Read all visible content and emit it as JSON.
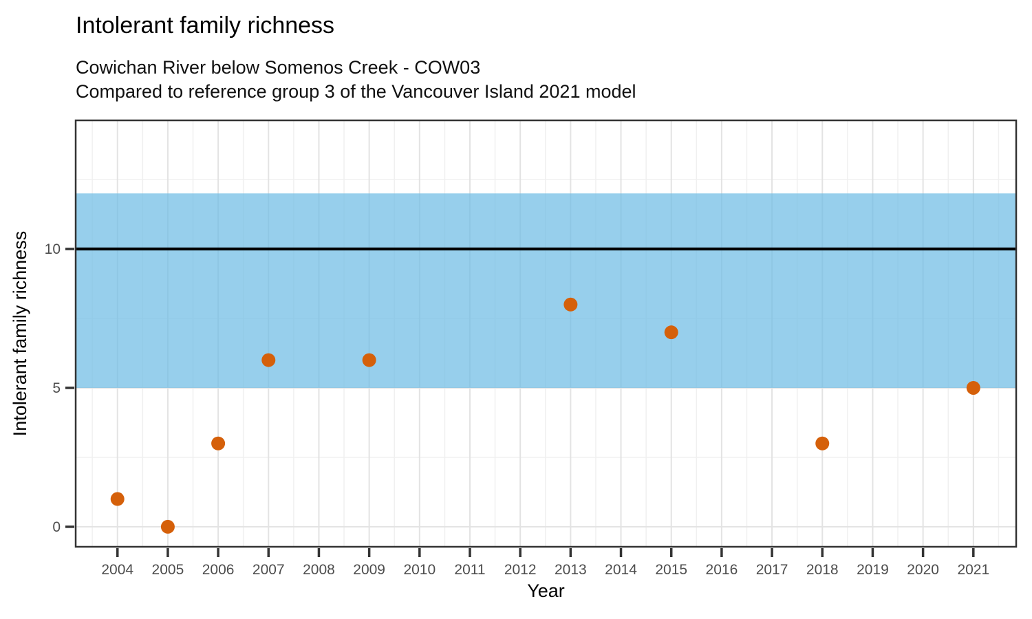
{
  "header": {
    "title": "Intolerant family richness",
    "subtitle_line1": "Cowichan River below Somenos Creek - COW03",
    "subtitle_line2": "Compared to reference group 3 of the Vancouver Island 2021 model"
  },
  "chart_data": {
    "type": "scatter",
    "title": "Intolerant family richness",
    "subtitle": [
      "Cowichan River below Somenos Creek - COW03",
      "Compared to reference group 3 of the Vancouver Island 2021 model"
    ],
    "xlabel": "Year",
    "ylabel": "Intolerant family richness",
    "xlim": [
      2003.17,
      2021.85
    ],
    "ylim": [
      -0.72,
      14.63
    ],
    "x_ticks": [
      2004,
      2005,
      2006,
      2007,
      2008,
      2009,
      2010,
      2011,
      2012,
      2013,
      2014,
      2015,
      2016,
      2017,
      2018,
      2019,
      2020,
      2021
    ],
    "y_ticks": [
      0,
      5,
      10
    ],
    "x_minor": [
      2003.5,
      2004.5,
      2005.5,
      2006.5,
      2007.5,
      2008.5,
      2009.5,
      2010.5,
      2011.5,
      2012.5,
      2013.5,
      2014.5,
      2015.5,
      2016.5,
      2017.5,
      2018.5,
      2019.5,
      2020.5,
      2021.5
    ],
    "y_minor": [
      2.5,
      7.5,
      12.5
    ],
    "grid": true,
    "legend": "none",
    "reference_band": {
      "ymin": 5,
      "ymax": 12,
      "color": "#6FBDE4",
      "opacity": 0.72
    },
    "reference_line": {
      "y": 10,
      "color": "#000000",
      "width": 4.3
    },
    "series": [
      {
        "name": "Intolerant family richness",
        "color": "#D5600A",
        "points": [
          {
            "x": 2004,
            "y": 1
          },
          {
            "x": 2005,
            "y": 0
          },
          {
            "x": 2006,
            "y": 3
          },
          {
            "x": 2007,
            "y": 6
          },
          {
            "x": 2009,
            "y": 6
          },
          {
            "x": 2013,
            "y": 8
          },
          {
            "x": 2015,
            "y": 7
          },
          {
            "x": 2018,
            "y": 3
          },
          {
            "x": 2021,
            "y": 5
          }
        ]
      }
    ],
    "styles": {
      "panel_background": "#FFFFFF",
      "grid_major": "#E3E3E3",
      "grid_minor": "#F0F0F0",
      "panel_border": "#333333",
      "tick_mark": "#333333",
      "tick_label_color": "#4D4D4D",
      "axis_title_color": "#000000"
    }
  }
}
